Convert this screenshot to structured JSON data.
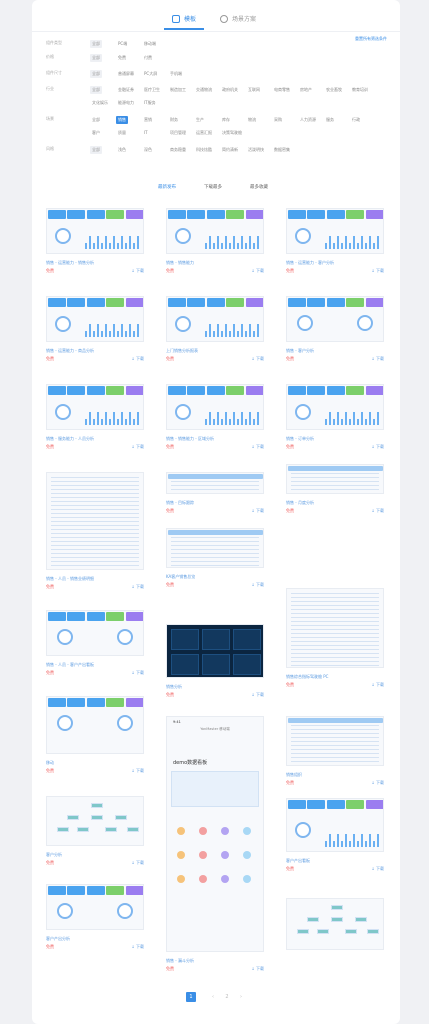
{
  "tabs": [
    {
      "label": "模板",
      "active": true
    },
    {
      "label": "场景方案",
      "active": false
    }
  ],
  "filters": {
    "reset_label": "重置所有筛选条件",
    "rows": [
      {
        "label": "组件类型",
        "options": [
          "全部",
          "PC端",
          "移动端"
        ],
        "selected": 0
      },
      {
        "label": "价格",
        "options": [
          "全部",
          "免费",
          "付费"
        ],
        "selected": 0
      },
      {
        "label": "组件尺寸",
        "options": [
          "全部",
          "普通屏幕",
          "PC大屏",
          "手机端"
        ],
        "selected": 0
      },
      {
        "label": "行业",
        "options": [
          "全部",
          "金融证券",
          "医疗卫生",
          "制造加工",
          "交通物流",
          "政府机关",
          "互联网",
          "电商零售",
          "房地产",
          "农业畜牧",
          "教育培训",
          "文化娱乐",
          "能源电力",
          "IT服务"
        ],
        "selected": 0
      },
      {
        "label": "场景",
        "options": [
          "全部",
          "销售",
          "营销",
          "财务",
          "生产",
          "库存",
          "物流",
          "采购",
          "人力资源",
          "服务",
          "行政",
          "客户",
          "质量",
          "IT",
          "项目管理",
          "运营汇报",
          "决策驾驶舱"
        ],
        "selected": 1
      },
      {
        "label": "风格",
        "options": [
          "全部",
          "浅色",
          "深色",
          "商务稳重",
          "科技炫酷",
          "简约清新",
          "活泼明快",
          "数据密集"
        ],
        "selected": 0
      }
    ]
  },
  "sort": [
    "最新发布",
    "下载最多",
    "最多收藏"
  ],
  "sort_selected": 0,
  "cards": [
    {
      "title": "销售 - 运营能力 - 销售分析",
      "price": "免费",
      "download": "↓ 下载"
    },
    {
      "title": "销售 - 销售能力",
      "price": "免费",
      "download": "↓ 下载"
    },
    {
      "title": "销售 - 运营能力 - 客户分析",
      "price": "免费",
      "download": "↓ 下载"
    },
    {
      "title": "销售 - 运营能力 - 商品分析",
      "price": "免费",
      "download": "↓ 下载"
    },
    {
      "title": "上门销售分析报表",
      "price": "免费",
      "download": "↓ 下载"
    },
    {
      "title": "销售 - 客户分析",
      "price": "免费",
      "download": "↓ 下载"
    },
    {
      "title": "销售 - 服务能力 - 人员分析",
      "price": "免费",
      "download": "↓ 下载"
    },
    {
      "title": "销售 - 销售能力 - 区域分析",
      "price": "免费",
      "download": "↓ 下载"
    },
    {
      "title": "销售 - 订单分析",
      "price": "免费",
      "download": "↓ 下载"
    },
    {
      "title": "销售 - 人员 - 销售业绩明细",
      "price": "免费",
      "download": "↓ 下载"
    },
    {
      "title": "销售 - 目标跟踪",
      "price": "免费",
      "download": "↓ 下载"
    },
    {
      "title": "销售 - 月度分析",
      "price": "免费",
      "download": "↓ 下载"
    },
    {
      "title": "KA客户销售总览",
      "price": "免费",
      "download": "↓ 下载"
    },
    {
      "title": "销售综合指标驾驶舱 PC",
      "price": "免费",
      "download": "↓ 下载"
    },
    {
      "title": "销售 - 人员 - 客户产出看板",
      "price": "免费",
      "download": "↓ 下载"
    },
    {
      "title": "销售分析",
      "price": "免费",
      "download": "↓ 下载"
    },
    {
      "title": "移动",
      "price": "免费",
      "download": "↓ 下载"
    },
    {
      "title": "销售 - 漏斗分析",
      "price": "免费",
      "download": "↓ 下载"
    },
    {
      "title": "销售组织",
      "price": "免费",
      "download": "↓ 下载"
    },
    {
      "title": "客户分析",
      "price": "免费",
      "download": "↓ 下载"
    },
    {
      "title": "客户产出看板",
      "price": "免费",
      "download": "↓ 下载"
    },
    {
      "title": "客户产出分析",
      "price": "免费",
      "download": "↓ 下载"
    }
  ],
  "mobile_card": {
    "header": "YonMaster 移动端",
    "time": "9:41",
    "headline": "demo数据看板"
  },
  "pagination": {
    "pages": [
      "1",
      "2"
    ],
    "prev": "‹",
    "next": "›",
    "active": 0
  },
  "colors": {
    "accent": "#3a8ee6",
    "free": "#f06262",
    "bar_a": "#4aa3ef",
    "bar_b": "#7ccf6b",
    "bar_c": "#9b7df0"
  }
}
